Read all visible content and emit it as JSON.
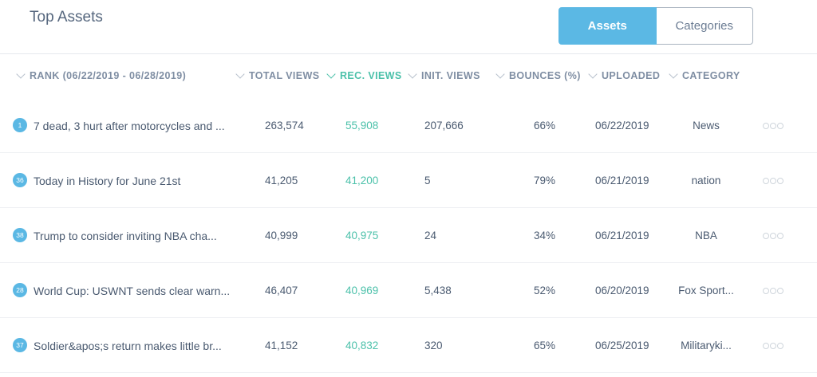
{
  "title": "Top Assets",
  "toggle": {
    "assets_label": "Assets",
    "categories_label": "Categories"
  },
  "columns": {
    "rank": "RANK (06/22/2019 - 06/28/2019)",
    "total_views": "TOTAL VIEWS",
    "rec_views": "REC. VIEWS",
    "init_views": "INIT. VIEWS",
    "bounces": "BOUNCES (%)",
    "uploaded": "UPLOADED",
    "category": "CATEGORY"
  },
  "rows": [
    {
      "rank": "1",
      "name": "7 dead, 3 hurt after motorcycles and ...",
      "total": "263,574",
      "rec": "55,908",
      "init": "207,666",
      "bounce": "66%",
      "uploaded": "06/22/2019",
      "category": "News"
    },
    {
      "rank": "36",
      "name": "Today in History for June 21st",
      "total": "41,205",
      "rec": "41,200",
      "init": "5",
      "bounce": "79%",
      "uploaded": "06/21/2019",
      "category": "nation"
    },
    {
      "rank": "38",
      "name": "Trump to consider inviting NBA cha...",
      "total": "40,999",
      "rec": "40,975",
      "init": "24",
      "bounce": "34%",
      "uploaded": "06/21/2019",
      "category": "NBA"
    },
    {
      "rank": "28",
      "name": "World Cup: USWNT sends clear warn...",
      "total": "46,407",
      "rec": "40,969",
      "init": "5,438",
      "bounce": "52%",
      "uploaded": "06/20/2019",
      "category": "Fox Sport..."
    },
    {
      "rank": "37",
      "name": "Soldier&apos;s return makes little br...",
      "total": "41,152",
      "rec": "40,832",
      "init": "320",
      "bounce": "65%",
      "uploaded": "06/25/2019",
      "category": "Militaryki..."
    }
  ],
  "colors": {
    "accent_blue": "#5bb8e4",
    "accent_green": "#4cc1aa"
  }
}
